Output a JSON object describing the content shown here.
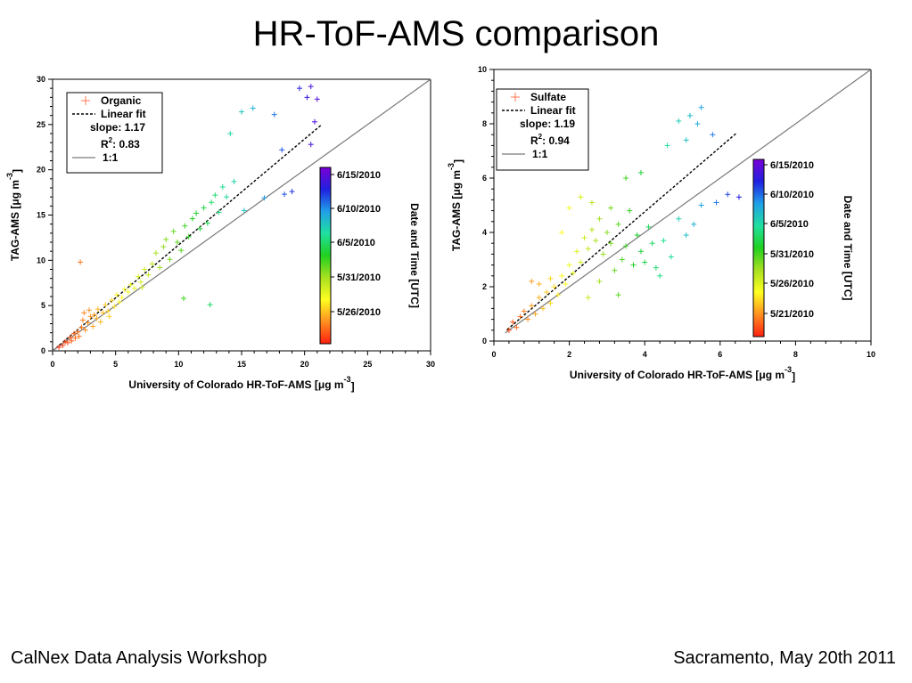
{
  "slide": {
    "title": "HR-ToF-AMS comparison",
    "footer_left": "CalNex Data Analysis Workshop",
    "footer_right": "Sacramento, May 20th 2011"
  },
  "chart_data": [
    {
      "type": "scatter",
      "xlabel": "University of Colorado HR-ToF-AMS [μg m",
      "xlabel_sup": "-3",
      "xlabel_end": "]",
      "ylabel": "TAG-AMS [μg m",
      "ylabel_sup": "-3",
      "ylabel_end": "]",
      "xlim": [
        0,
        30
      ],
      "ylim": [
        0,
        30
      ],
      "xticks": [
        0,
        5,
        10,
        15,
        20,
        25,
        30
      ],
      "yticks": [
        0,
        5,
        10,
        15,
        20,
        25,
        30
      ],
      "series": [
        {
          "name": "Organic",
          "points": [
            [
              0.5,
              0.4
            ],
            [
              0.8,
              0.6
            ],
            [
              1.0,
              1.0
            ],
            [
              1.2,
              0.9
            ],
            [
              1.4,
              1.5
            ],
            [
              1.5,
              1.1
            ],
            [
              1.7,
              1.9
            ],
            [
              1.8,
              1.4
            ],
            [
              2.0,
              2.1
            ],
            [
              2.1,
              1.6
            ],
            [
              2.3,
              2.6
            ],
            [
              2.4,
              3.4
            ],
            [
              2.5,
              4.2
            ],
            [
              2.6,
              2.3
            ],
            [
              2.8,
              3.1
            ],
            [
              2.9,
              4.5
            ],
            [
              3.0,
              3.8
            ],
            [
              3.2,
              2.7
            ],
            [
              3.3,
              4.0
            ],
            [
              3.5,
              3.6
            ],
            [
              3.6,
              4.6
            ],
            [
              3.8,
              3.2
            ],
            [
              4.0,
              4.2
            ],
            [
              4.2,
              5.1
            ],
            [
              4.4,
              4.4
            ],
            [
              4.5,
              3.8
            ],
            [
              4.7,
              5.6
            ],
            [
              4.9,
              4.9
            ],
            [
              5.1,
              6.2
            ],
            [
              5.3,
              5.4
            ],
            [
              5.5,
              5.9
            ],
            [
              5.7,
              6.8
            ],
            [
              6.0,
              6.5
            ],
            [
              6.2,
              7.3
            ],
            [
              6.5,
              6.9
            ],
            [
              6.8,
              8.2
            ],
            [
              7.0,
              7.6
            ],
            [
              7.3,
              9.0
            ],
            [
              7.6,
              8.4
            ],
            [
              7.9,
              9.6
            ],
            [
              8.2,
              10.8
            ],
            [
              8.5,
              9.2
            ],
            [
              8.8,
              11.5
            ],
            [
              9.0,
              12.3
            ],
            [
              9.3,
              10.1
            ],
            [
              9.6,
              13.2
            ],
            [
              9.9,
              12.0
            ],
            [
              10.2,
              11.1
            ],
            [
              10.5,
              13.8
            ],
            [
              10.8,
              12.6
            ],
            [
              11.1,
              14.6
            ],
            [
              11.4,
              15.2
            ],
            [
              11.7,
              13.5
            ],
            [
              12.0,
              15.8
            ],
            [
              12.3,
              14.1
            ],
            [
              12.6,
              16.4
            ],
            [
              12.9,
              17.2
            ],
            [
              13.2,
              15.3
            ],
            [
              13.5,
              18.1
            ],
            [
              13.8,
              17.0
            ],
            [
              14.1,
              24.0
            ],
            [
              14.4,
              18.7
            ],
            [
              15.0,
              26.4
            ],
            [
              15.9,
              26.8
            ],
            [
              17.6,
              26.1
            ],
            [
              18.2,
              22.2
            ],
            [
              19.6,
              29.0
            ],
            [
              20.2,
              28.0
            ],
            [
              20.5,
              29.2
            ],
            [
              21.0,
              27.8
            ],
            [
              20.8,
              25.3
            ],
            [
              20.5,
              22.8
            ],
            [
              19.0,
              17.6
            ],
            [
              18.4,
              17.3
            ],
            [
              16.8,
              16.9
            ],
            [
              15.2,
              15.5
            ],
            [
              12.5,
              5.1
            ],
            [
              10.4,
              5.8
            ],
            [
              7.1,
              7.0
            ],
            [
              2.2,
              9.8
            ]
          ]
        }
      ],
      "fits": [
        {
          "name": "Linear fit",
          "style": "dashed",
          "slope": 1.17,
          "intercept": 0,
          "x_range": [
            0,
            21.3
          ],
          "label": "slope: 1.17",
          "r2_value": "0.83"
        },
        {
          "name": "1:1",
          "style": "solid",
          "slope": 1,
          "intercept": 0,
          "x_range": [
            0,
            30
          ]
        }
      ],
      "colorbar": {
        "label": "Date and Time [UTC]",
        "ticks": [
          "6/15/2010",
          "6/10/2010",
          "6/5/2010",
          "5/31/2010",
          "5/26/2010"
        ],
        "gradient": [
          "#7a00d6",
          "#2020e0",
          "#20a0e8",
          "#20e0a0",
          "#20d020",
          "#a8e020",
          "#ffff20",
          "#ff9020",
          "#ff2010"
        ]
      },
      "legend": {
        "placement": "top-left",
        "series_label": "Organic",
        "fit_label": "Linear fit",
        "slope_label": "slope: 1.17",
        "r2_prefix": "R",
        "r2_sup": "2",
        "r2_suffix": ": 0.83",
        "oneone_label": "1:1"
      },
      "marker_color": "#ff7a50"
    },
    {
      "type": "scatter",
      "xlabel": "University of Colorado HR-ToF-AMS [μg m",
      "xlabel_sup": "-3",
      "xlabel_end": "]",
      "ylabel": "TAG-AMS [μg m",
      "ylabel_sup": "-3",
      "ylabel_end": "]",
      "xlim": [
        0,
        10
      ],
      "ylim": [
        0,
        10
      ],
      "xticks": [
        0,
        2,
        4,
        6,
        8,
        10
      ],
      "yticks": [
        0,
        2,
        4,
        6,
        8,
        10
      ],
      "series": [
        {
          "name": "Sulfate",
          "points": [
            [
              0.4,
              0.4
            ],
            [
              0.5,
              0.7
            ],
            [
              0.6,
              0.5
            ],
            [
              0.7,
              0.9
            ],
            [
              0.8,
              1.1
            ],
            [
              0.9,
              0.8
            ],
            [
              1.0,
              1.3
            ],
            [
              1.1,
              1.0
            ],
            [
              1.2,
              1.6
            ],
            [
              1.3,
              1.2
            ],
            [
              1.4,
              1.8
            ],
            [
              1.5,
              1.4
            ],
            [
              1.6,
              2.0
            ],
            [
              1.7,
              1.7
            ],
            [
              1.8,
              2.4
            ],
            [
              1.9,
              2.1
            ],
            [
              2.0,
              2.8
            ],
            [
              2.1,
              2.5
            ],
            [
              2.2,
              3.3
            ],
            [
              2.3,
              2.9
            ],
            [
              2.4,
              3.8
            ],
            [
              2.5,
              3.4
            ],
            [
              2.6,
              4.1
            ],
            [
              2.7,
              3.7
            ],
            [
              2.8,
              4.5
            ],
            [
              2.9,
              3.2
            ],
            [
              3.0,
              4.0
            ],
            [
              3.1,
              3.6
            ],
            [
              3.2,
              2.6
            ],
            [
              3.3,
              4.3
            ],
            [
              3.4,
              3.0
            ],
            [
              3.5,
              3.5
            ],
            [
              3.6,
              4.8
            ],
            [
              3.7,
              2.8
            ],
            [
              3.8,
              3.9
            ],
            [
              3.9,
              3.3
            ],
            [
              4.0,
              2.9
            ],
            [
              4.1,
              4.2
            ],
            [
              4.2,
              3.6
            ],
            [
              4.3,
              2.7
            ],
            [
              4.5,
              3.7
            ],
            [
              4.7,
              3.1
            ],
            [
              4.9,
              4.5
            ],
            [
              5.1,
              3.9
            ],
            [
              5.3,
              4.3
            ],
            [
              5.5,
              5.0
            ],
            [
              5.9,
              5.1
            ],
            [
              6.2,
              5.4
            ],
            [
              6.5,
              5.3
            ],
            [
              2.3,
              5.3
            ],
            [
              2.0,
              4.9
            ],
            [
              2.6,
              5.1
            ],
            [
              1.8,
              4.0
            ],
            [
              1.5,
              2.3
            ],
            [
              1.2,
              2.1
            ],
            [
              1.0,
              2.2
            ],
            [
              4.6,
              7.2
            ],
            [
              5.1,
              7.4
            ],
            [
              5.4,
              8.0
            ],
            [
              5.5,
              8.6
            ],
            [
              5.2,
              8.3
            ],
            [
              4.9,
              8.1
            ],
            [
              5.8,
              7.6
            ],
            [
              3.9,
              6.2
            ],
            [
              3.5,
              6.0
            ],
            [
              3.1,
              4.9
            ],
            [
              2.8,
              2.2
            ],
            [
              3.3,
              1.7
            ],
            [
              4.4,
              2.4
            ],
            [
              2.5,
              1.6
            ]
          ]
        }
      ],
      "fits": [
        {
          "name": "Linear fit",
          "style": "dashed",
          "slope": 1.19,
          "intercept": 0,
          "x_range": [
            0.35,
            6.45
          ],
          "label": "slope: 1.19",
          "r2_value": "0.94"
        },
        {
          "name": "1:1",
          "style": "solid",
          "slope": 1,
          "intercept": 0,
          "x_range": [
            0.3,
            10
          ]
        }
      ],
      "colorbar": {
        "label": "Date and Time [UTC]",
        "ticks": [
          "6/15/2010",
          "6/10/2010",
          "6/5/2010",
          "5/31/2010",
          "5/26/2010",
          "5/21/2010"
        ],
        "gradient": [
          "#7a00d6",
          "#2020e0",
          "#20a0e8",
          "#20e0a0",
          "#20d020",
          "#a8e020",
          "#ffff20",
          "#ff9020",
          "#ff2010"
        ]
      },
      "legend": {
        "placement": "top-left",
        "series_label": "Sulfate",
        "fit_label": "Linear fit",
        "slope_label": "slope: 1.19",
        "r2_prefix": "R",
        "r2_sup": "2",
        "r2_suffix": ": 0.94",
        "oneone_label": "1:1"
      },
      "marker_color": "#ff7a50"
    }
  ]
}
